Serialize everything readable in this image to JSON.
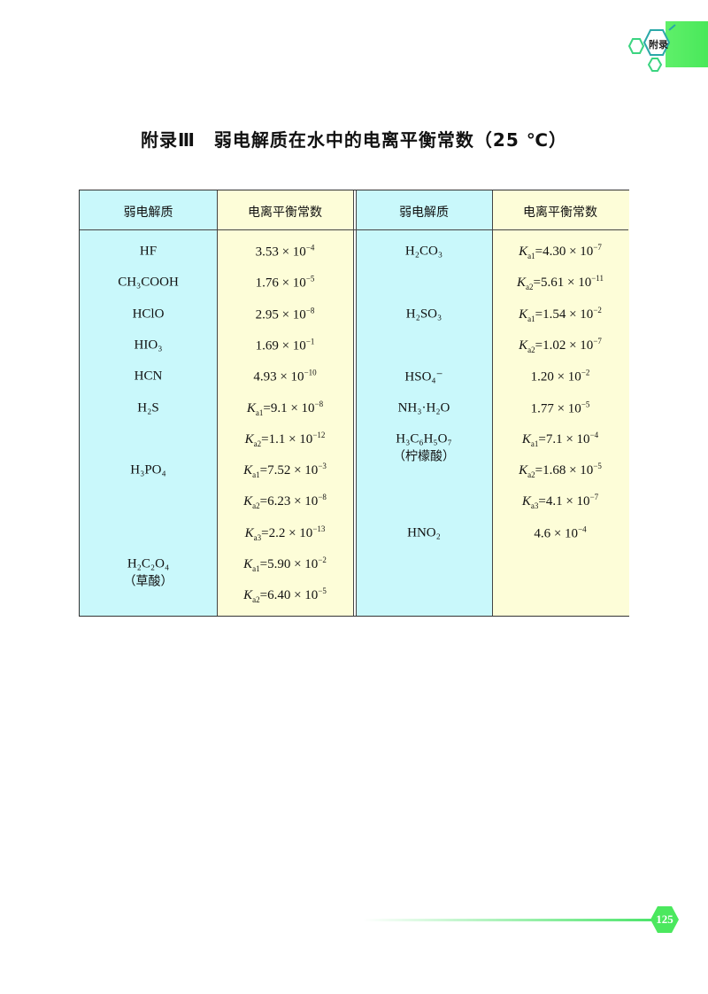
{
  "header_tab": {
    "label": "附录",
    "accent": "#4be85e"
  },
  "title": "附录Ⅲ　弱电解质在水中的电离平衡常数（25 ℃）",
  "table": {
    "headers": [
      "弱电解质",
      "电离平衡常数",
      "弱电解质",
      "电离平衡常数"
    ],
    "left_substances": [
      {
        "row": 0,
        "name": "HF"
      },
      {
        "row": 1,
        "name": "CH₃COOH"
      },
      {
        "row": 2,
        "name": "HClO"
      },
      {
        "row": 3,
        "name": "HIO₃"
      },
      {
        "row": 4,
        "name": "HCN"
      },
      {
        "row": 5,
        "name": "H₂S"
      },
      {
        "row": 7,
        "name": "H₃PO₄"
      },
      {
        "row": 10,
        "name": "H₂C₂O₄",
        "note": "（草酸）"
      }
    ],
    "left_constants": [
      {
        "k": "",
        "m": "3.53",
        "e": "−4"
      },
      {
        "k": "",
        "m": "1.76",
        "e": "−5"
      },
      {
        "k": "",
        "m": "2.95",
        "e": "−8"
      },
      {
        "k": "",
        "m": "1.69",
        "e": "−1"
      },
      {
        "k": "",
        "m": "4.93",
        "e": "−10"
      },
      {
        "k": "a1",
        "m": "9.1",
        "e": "−8"
      },
      {
        "k": "a2",
        "m": "1.1",
        "e": "−12"
      },
      {
        "k": "a1",
        "m": "7.52",
        "e": "−3"
      },
      {
        "k": "a2",
        "m": "6.23",
        "e": "−8"
      },
      {
        "k": "a3",
        "m": "2.2",
        "e": "−13"
      },
      {
        "k": "a1",
        "m": "5.90",
        "e": "−2"
      },
      {
        "k": "a2",
        "m": "6.40",
        "e": "−5"
      }
    ],
    "right_substances": [
      {
        "row": 0,
        "name": "H₂CO₃"
      },
      {
        "row": 2,
        "name": "H₂SO₃"
      },
      {
        "row": 4,
        "name": "HSO₄⁻"
      },
      {
        "row": 5,
        "name": "NH₃·H₂O"
      },
      {
        "row": 6,
        "name": "H₃C₆H₅O₇",
        "note": "（柠檬酸）"
      },
      {
        "row": 9,
        "name": "HNO₂"
      }
    ],
    "right_constants": [
      {
        "k": "a1",
        "m": "4.30",
        "e": "−7"
      },
      {
        "k": "a2",
        "m": "5.61",
        "e": "−11"
      },
      {
        "k": "a1",
        "m": "1.54",
        "e": "−2"
      },
      {
        "k": "a2",
        "m": "1.02",
        "e": "−7"
      },
      {
        "k": "",
        "m": "1.20",
        "e": "−2"
      },
      {
        "k": "",
        "m": "1.77",
        "e": "−5"
      },
      {
        "k": "a1",
        "m": "7.1",
        "e": "−4"
      },
      {
        "k": "a2",
        "m": "1.68",
        "e": "−5"
      },
      {
        "k": "a3",
        "m": "4.1",
        "e": "−7"
      },
      {
        "k": "",
        "m": "4.6",
        "e": "−4"
      }
    ],
    "colors": {
      "substance_bg": "#c9f8fb",
      "constant_bg": "#fdfdd8"
    }
  },
  "page_number": "125"
}
